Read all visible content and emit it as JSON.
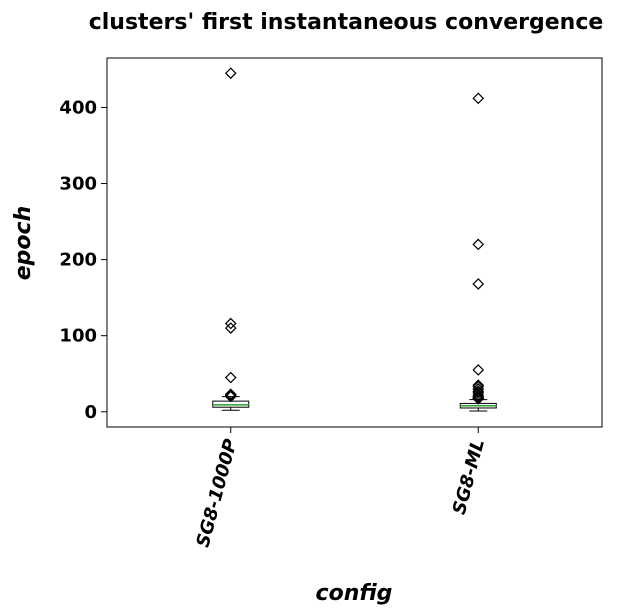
{
  "chart_data": {
    "type": "box",
    "title": "clusters' first instantaneous convergence",
    "xlabel": "config",
    "ylabel": "epoch",
    "ylim": [
      -20,
      465
    ],
    "yticks": [
      0,
      100,
      200,
      300,
      400
    ],
    "grid": false,
    "categories": [
      "SG8-1000P",
      "SG8-ML"
    ],
    "boxes": [
      {
        "category": "SG8-1000P",
        "whisker_low": 2,
        "q1": 6,
        "median": 9,
        "q3": 14,
        "whisker_high": 20,
        "outliers": [
          445,
          116,
          110,
          45,
          23,
          22,
          21,
          20
        ]
      },
      {
        "category": "SG8-ML",
        "whisker_low": 1,
        "q1": 5,
        "median": 8,
        "q3": 11,
        "whisker_high": 16,
        "outliers": [
          412,
          220,
          168,
          55,
          35,
          33,
          30,
          27,
          25,
          22,
          20,
          19,
          18,
          17
        ]
      }
    ],
    "colors": {
      "box_edge": "#000000",
      "median": "#2ca02c",
      "outlier": "#000000"
    }
  }
}
